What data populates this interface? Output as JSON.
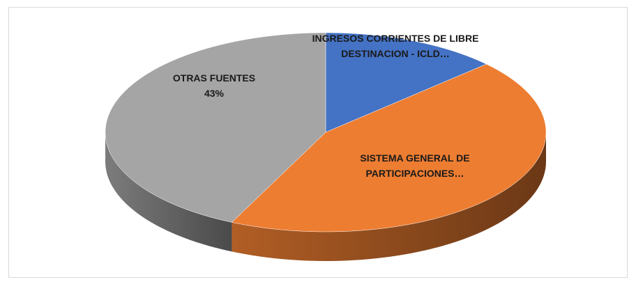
{
  "chart_data": {
    "type": "pie",
    "categories": [
      "INGRESOS CORRIENTES DE LIBRE DESTINACION - ICLD…",
      "SISTEMA GENERAL DE PARTICIPACIONES…",
      "OTRAS FUENTES"
    ],
    "values": [
      13,
      44,
      43
    ],
    "value_labels": [
      null,
      null,
      "43%"
    ],
    "colors": [
      "#4472c4",
      "#ed7d31",
      "#a5a5a5"
    ]
  }
}
